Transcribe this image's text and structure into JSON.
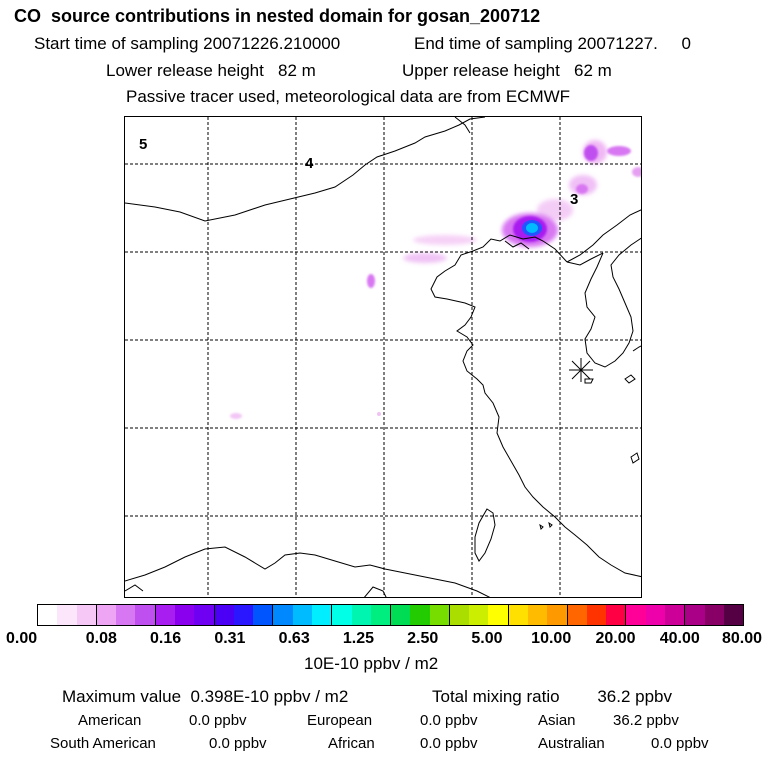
{
  "header": {
    "title": "CO  source contributions in nested domain for gosan_200712",
    "start_label": "Start time of sampling 20071226.210000",
    "end_label": "End time of sampling 20071227.     0",
    "lower_label": "Lower release height   82 m",
    "upper_label": "Upper release height   62 m",
    "tracer_label": "Passive tracer used, meteorological data are from ECMWF"
  },
  "map": {
    "region_labels": [
      "5",
      "4",
      "3"
    ],
    "receptor_marker": "gosan-receptor-asterisk"
  },
  "colorbar": {
    "colors": [
      "#ffffff",
      "#fbe6fb",
      "#f6c8f6",
      "#eea6f4",
      "#d877f2",
      "#c04ff0",
      "#a81ef0",
      "#8a00ee",
      "#7000f2",
      "#4b00f5",
      "#2a17ff",
      "#0055ff",
      "#0088ff",
      "#00bbff",
      "#00eeff",
      "#00ffe6",
      "#00f5b0",
      "#00ee80",
      "#00dd55",
      "#22cc00",
      "#77dd00",
      "#aadd00",
      "#ccee00",
      "#ffff00",
      "#ffe000",
      "#ffbb00",
      "#ff9900",
      "#ff6600",
      "#ff3300",
      "#ff0044",
      "#ff0099",
      "#ee00aa",
      "#cc0099",
      "#aa0088",
      "#880066",
      "#550044"
    ],
    "ticks": [
      "0.00",
      "0.08",
      "0.16",
      "0.31",
      "0.63",
      "1.25",
      "2.50",
      "5.00",
      "10.00",
      "20.00",
      "40.00",
      "80.00"
    ],
    "unit": "10E-10 ppbv / m2"
  },
  "stats": {
    "max_label": "Maximum value  0.398E-10 ppbv / m2",
    "total_label": "Total mixing ratio        36.2 ppbv",
    "american_label": "American",
    "american_value": "0.0 ppbv",
    "european_label": "European",
    "european_value": "0.0 ppbv",
    "asian_label": "Asian",
    "asian_value": "36.2 ppbv",
    "south_american_label": "South American",
    "south_american_value": "0.0 ppbv",
    "african_label": "African",
    "african_value": "0.0 ppbv",
    "australian_label": "Australian",
    "australian_value": "0.0 ppbv"
  }
}
